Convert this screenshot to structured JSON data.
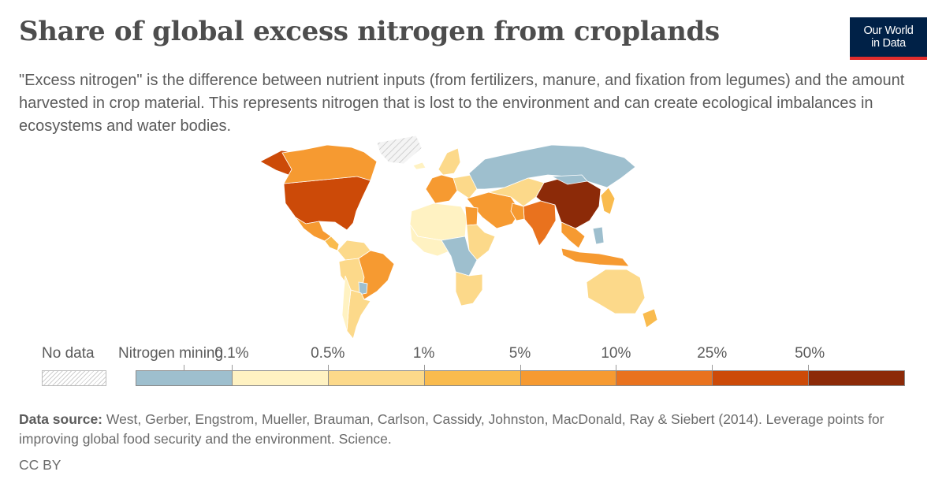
{
  "header": {
    "title": "Share of global excess nitrogen from croplands",
    "subtitle": "\"Excess nitrogen\" is the difference between nutrient inputs (from fertilizers, manure, and fixation from legumes) and the amount harvested in crop material. This represents nitrogen that is lost to the environment and can create ecological imbalances in ecosystems and water bodies.",
    "logo_line1": "Our World",
    "logo_line2": "in Data"
  },
  "legend": {
    "no_data_label": "No data",
    "first_bin_label": "Nitrogen mining",
    "thresholds": [
      "0.1%",
      "0.5%",
      "1%",
      "5%",
      "10%",
      "25%",
      "50%"
    ],
    "bins": [
      {
        "label": "Nitrogen mining",
        "color": "#9ebfce"
      },
      {
        "label": "0–0.1%",
        "color": "#fff2c2"
      },
      {
        "label": "0.1–0.5%",
        "color": "#fcd98a"
      },
      {
        "label": "0.5–1%",
        "color": "#f9bb4e"
      },
      {
        "label": "1–5%",
        "color": "#f69a31"
      },
      {
        "label": "5–10%",
        "color": "#e9721e"
      },
      {
        "label": "10–25%",
        "color": "#cc4a08"
      },
      {
        "label": "25–50%",
        "color": "#8c2a08"
      }
    ],
    "no_data_color": "#e3e3e3"
  },
  "map": {
    "regions": [
      {
        "name": "usa",
        "bin": 6
      },
      {
        "name": "alaska",
        "bin": 6
      },
      {
        "name": "canada",
        "bin": 4
      },
      {
        "name": "greenland",
        "bin": -1
      },
      {
        "name": "mexico",
        "bin": 4
      },
      {
        "name": "central-america",
        "bin": 3
      },
      {
        "name": "colombia-venezuela",
        "bin": 2
      },
      {
        "name": "peru-bolivia",
        "bin": 2
      },
      {
        "name": "brazil",
        "bin": 4
      },
      {
        "name": "paraguay",
        "bin": 0
      },
      {
        "name": "argentina",
        "bin": 2
      },
      {
        "name": "chile",
        "bin": 1
      },
      {
        "name": "iceland",
        "bin": 1
      },
      {
        "name": "scandinavia",
        "bin": 2
      },
      {
        "name": "western-europe",
        "bin": 4
      },
      {
        "name": "eastern-europe",
        "bin": 2
      },
      {
        "name": "russia",
        "bin": 0
      },
      {
        "name": "turkey-middle-east",
        "bin": 4
      },
      {
        "name": "central-asia",
        "bin": 2
      },
      {
        "name": "north-africa",
        "bin": 1
      },
      {
        "name": "egypt",
        "bin": 4
      },
      {
        "name": "west-africa",
        "bin": 1
      },
      {
        "name": "east-africa",
        "bin": 2
      },
      {
        "name": "central-africa",
        "bin": 0
      },
      {
        "name": "southern-africa",
        "bin": 2
      },
      {
        "name": "india",
        "bin": 5
      },
      {
        "name": "pakistan",
        "bin": 4
      },
      {
        "name": "china",
        "bin": 7
      },
      {
        "name": "mongolia",
        "bin": 0
      },
      {
        "name": "japan-korea",
        "bin": 3
      },
      {
        "name": "southeast-asia",
        "bin": 4
      },
      {
        "name": "indonesia",
        "bin": 4
      },
      {
        "name": "philippines",
        "bin": 0
      },
      {
        "name": "australia",
        "bin": 2
      },
      {
        "name": "new-zealand",
        "bin": 3
      }
    ]
  }
}
